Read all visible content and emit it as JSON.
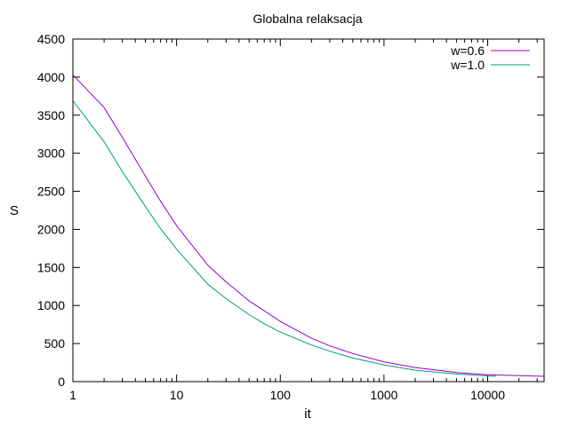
{
  "chart_data": {
    "type": "line",
    "title": "Globalna relaksacja",
    "xlabel": "it",
    "ylabel": "S",
    "xscale": "log",
    "xlim": [
      1,
      35000
    ],
    "ylim": [
      0,
      4500
    ],
    "xticks": [
      1,
      10,
      100,
      1000,
      10000
    ],
    "xtick_labels": [
      "1",
      "10",
      "100",
      "1000",
      "10000"
    ],
    "yticks": [
      0,
      500,
      1000,
      1500,
      2000,
      2500,
      3000,
      3500,
      4000,
      4500
    ],
    "ytick_labels": [
      "0",
      "500",
      "1000",
      "1500",
      "2000",
      "2500",
      "3000",
      "3500",
      "4000",
      "4500"
    ],
    "grid": false,
    "legend_position": "top-right",
    "series": [
      {
        "name": "w=0.6",
        "color": "#9400d3",
        "x": [
          1,
          2,
          3,
          5,
          7,
          10,
          20,
          30,
          50,
          70,
          100,
          200,
          300,
          500,
          1000,
          2000,
          5000,
          10000,
          35000
        ],
        "y": [
          4030,
          3600,
          3210,
          2700,
          2370,
          2050,
          1530,
          1310,
          1060,
          930,
          790,
          570,
          470,
          370,
          260,
          185,
          120,
          90,
          70
        ]
      },
      {
        "name": "w=1.0",
        "color": "#009e73",
        "x": [
          1,
          2,
          3,
          5,
          7,
          10,
          20,
          30,
          50,
          70,
          100,
          200,
          300,
          500,
          1000,
          2000,
          5000,
          10000,
          12000
        ],
        "y": [
          3690,
          3150,
          2760,
          2300,
          2010,
          1740,
          1280,
          1090,
          880,
          760,
          650,
          480,
          400,
          310,
          220,
          150,
          100,
          75,
          70
        ]
      }
    ]
  }
}
